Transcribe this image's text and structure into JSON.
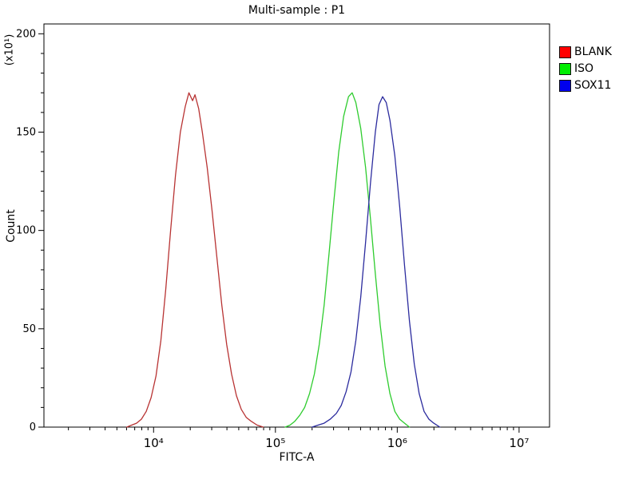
{
  "chart_data": {
    "type": "line",
    "title": "Multi-sample : P1",
    "xlabel": "FITC-A",
    "ylabel": "Count",
    "y_unit_label": "(x10¹)",
    "x_scale": "log10",
    "xlim_log": [
      3.1,
      7.25
    ],
    "ylim": [
      0,
      205
    ],
    "x_ticks": [
      {
        "value": 10000,
        "label": "10⁴"
      },
      {
        "value": 100000,
        "label": "10⁵"
      },
      {
        "value": 1000000,
        "label": "10⁶"
      },
      {
        "value": 10000000,
        "label": "10⁷"
      }
    ],
    "y_ticks": [
      0,
      50,
      100,
      150,
      200
    ],
    "y_minor_step": 10,
    "grid": false,
    "legend_position": "right-outside",
    "axis_color": "#000000",
    "background_color": "#ffffff",
    "series": [
      {
        "name": "BLANK",
        "color": "#b83333",
        "legend_color": "#ff0000",
        "peak_x": 20000,
        "peak_count": 170,
        "points_logx_count": [
          [
            3.78,
            0
          ],
          [
            3.82,
            1
          ],
          [
            3.86,
            2
          ],
          [
            3.9,
            4
          ],
          [
            3.94,
            8
          ],
          [
            3.98,
            15
          ],
          [
            4.02,
            26
          ],
          [
            4.06,
            44
          ],
          [
            4.1,
            70
          ],
          [
            4.14,
            100
          ],
          [
            4.18,
            128
          ],
          [
            4.22,
            150
          ],
          [
            4.26,
            163
          ],
          [
            4.29,
            170
          ],
          [
            4.32,
            166
          ],
          [
            4.34,
            169
          ],
          [
            4.37,
            162
          ],
          [
            4.4,
            150
          ],
          [
            4.44,
            132
          ],
          [
            4.48,
            110
          ],
          [
            4.52,
            86
          ],
          [
            4.56,
            62
          ],
          [
            4.6,
            42
          ],
          [
            4.64,
            27
          ],
          [
            4.68,
            16
          ],
          [
            4.72,
            9
          ],
          [
            4.76,
            5
          ],
          [
            4.8,
            3
          ],
          [
            4.85,
            1
          ],
          [
            4.9,
            0
          ]
        ]
      },
      {
        "name": "ISO",
        "color": "#2ecc2e",
        "legend_color": "#00ee00",
        "peak_x": 420000,
        "peak_count": 170,
        "points_logx_count": [
          [
            5.08,
            0
          ],
          [
            5.12,
            1
          ],
          [
            5.16,
            3
          ],
          [
            5.2,
            6
          ],
          [
            5.24,
            10
          ],
          [
            5.28,
            17
          ],
          [
            5.32,
            27
          ],
          [
            5.36,
            42
          ],
          [
            5.4,
            62
          ],
          [
            5.44,
            88
          ],
          [
            5.48,
            115
          ],
          [
            5.52,
            140
          ],
          [
            5.56,
            158
          ],
          [
            5.6,
            168
          ],
          [
            5.63,
            170
          ],
          [
            5.66,
            165
          ],
          [
            5.7,
            152
          ],
          [
            5.74,
            132
          ],
          [
            5.78,
            106
          ],
          [
            5.82,
            78
          ],
          [
            5.86,
            52
          ],
          [
            5.9,
            31
          ],
          [
            5.94,
            17
          ],
          [
            5.98,
            8
          ],
          [
            6.02,
            4
          ],
          [
            6.06,
            2
          ],
          [
            6.1,
            0
          ]
        ]
      },
      {
        "name": "SOX11",
        "color": "#2b2b9e",
        "legend_color": "#0000ee",
        "peak_x": 680000,
        "peak_count": 168,
        "points_logx_count": [
          [
            5.3,
            0
          ],
          [
            5.35,
            1
          ],
          [
            5.4,
            2
          ],
          [
            5.45,
            4
          ],
          [
            5.5,
            7
          ],
          [
            5.54,
            11
          ],
          [
            5.58,
            18
          ],
          [
            5.62,
            28
          ],
          [
            5.66,
            44
          ],
          [
            5.7,
            66
          ],
          [
            5.74,
            94
          ],
          [
            5.78,
            124
          ],
          [
            5.82,
            150
          ],
          [
            5.85,
            164
          ],
          [
            5.88,
            168
          ],
          [
            5.91,
            165
          ],
          [
            5.94,
            156
          ],
          [
            5.98,
            138
          ],
          [
            6.02,
            112
          ],
          [
            6.06,
            82
          ],
          [
            6.1,
            54
          ],
          [
            6.14,
            32
          ],
          [
            6.18,
            17
          ],
          [
            6.22,
            8
          ],
          [
            6.26,
            4
          ],
          [
            6.3,
            2
          ],
          [
            6.35,
            0
          ]
        ]
      }
    ]
  }
}
